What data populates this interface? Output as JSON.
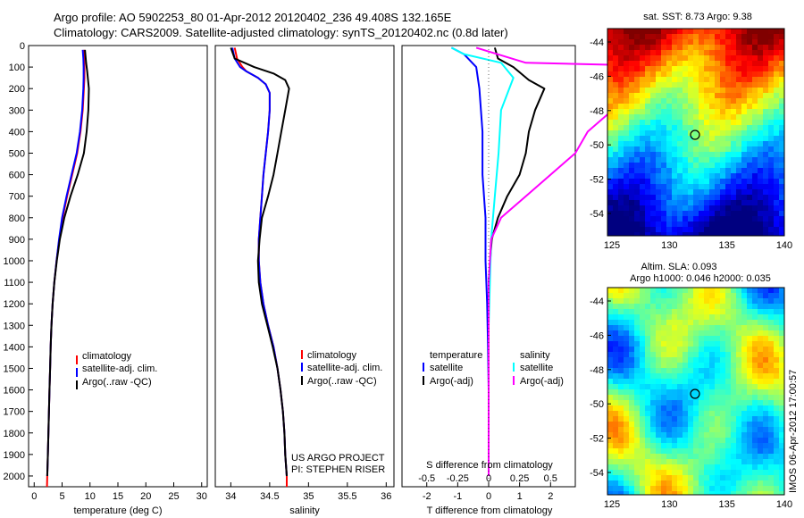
{
  "header": {
    "line1": "Argo profile: AO 5902253_80 01-Apr-2012 20120402_236 49.408S 132.165E",
    "line2": "Climatology: CARS2009. Satellite-adjusted climatology: synTS_20120402.nc (0.8d later)"
  },
  "colors": {
    "climatology": "#ff0000",
    "satellite": "#0000ff",
    "argo": "#000000",
    "sal_satellite": "#00ffff",
    "sal_argo": "#ff00ff"
  },
  "chart_data": [
    {
      "type": "line",
      "id": "temperature",
      "xlabel": "temperature (deg C)",
      "ylabel": "",
      "xlim": [
        -1,
        31
      ],
      "ylim": [
        2050,
        0
      ],
      "xticks": [
        0,
        5,
        10,
        15,
        20,
        25,
        30
      ],
      "yticks": [
        0,
        100,
        200,
        300,
        400,
        500,
        600,
        700,
        800,
        900,
        1000,
        1100,
        1200,
        1300,
        1400,
        1500,
        1600,
        1700,
        1800,
        1900,
        2000
      ],
      "legend": [
        "climatology",
        "satellite-adj. clim.",
        "Argo(..raw -QC)"
      ],
      "series": [
        {
          "name": "climatology",
          "color": "#ff0000",
          "points": [
            [
              8.9,
              20
            ],
            [
              8.95,
              60
            ],
            [
              9.0,
              100
            ],
            [
              9.0,
              150
            ],
            [
              8.9,
              200
            ],
            [
              8.7,
              300
            ],
            [
              8.3,
              400
            ],
            [
              7.7,
              500
            ],
            [
              6.8,
              600
            ],
            [
              5.9,
              700
            ],
            [
              5.1,
              800
            ],
            [
              4.5,
              900
            ],
            [
              4.0,
              1000
            ],
            [
              3.6,
              1100
            ],
            [
              3.3,
              1200
            ],
            [
              3.1,
              1300
            ],
            [
              2.95,
              1400
            ],
            [
              2.85,
              1500
            ],
            [
              2.75,
              1600
            ],
            [
              2.65,
              1700
            ],
            [
              2.55,
              1800
            ],
            [
              2.45,
              1900
            ],
            [
              2.35,
              2000
            ],
            [
              2.3,
              2050
            ]
          ]
        },
        {
          "name": "satellite-adj. clim.",
          "color": "#0000ff",
          "points": [
            [
              8.7,
              20
            ],
            [
              8.8,
              60
            ],
            [
              8.85,
              100
            ],
            [
              8.85,
              150
            ],
            [
              8.8,
              200
            ],
            [
              8.6,
              300
            ],
            [
              8.2,
              400
            ],
            [
              7.6,
              500
            ],
            [
              6.7,
              600
            ],
            [
              5.8,
              700
            ],
            [
              5.0,
              800
            ],
            [
              4.45,
              900
            ],
            [
              4.0,
              1000
            ],
            [
              3.6,
              1100
            ],
            [
              3.3,
              1200
            ],
            [
              3.1,
              1300
            ],
            [
              2.95,
              1400
            ],
            [
              2.85,
              1500
            ],
            [
              2.75,
              1600
            ],
            [
              2.65,
              1700
            ],
            [
              2.55,
              1800
            ],
            [
              2.45,
              1900
            ],
            [
              2.35,
              2000
            ]
          ]
        },
        {
          "name": "Argo(..raw -QC)",
          "color": "#000000",
          "points": [
            [
              9.1,
              20
            ],
            [
              9.3,
              80
            ],
            [
              9.5,
              120
            ],
            [
              9.8,
              200
            ],
            [
              9.7,
              300
            ],
            [
              9.4,
              400
            ],
            [
              8.9,
              500
            ],
            [
              7.8,
              600
            ],
            [
              6.5,
              700
            ],
            [
              5.4,
              800
            ],
            [
              4.6,
              900
            ],
            [
              4.05,
              1000
            ],
            [
              3.6,
              1100
            ],
            [
              3.3,
              1200
            ],
            [
              3.1,
              1300
            ],
            [
              2.95,
              1400
            ],
            [
              2.85,
              1500
            ],
            [
              2.75,
              1600
            ],
            [
              2.65,
              1700
            ],
            [
              2.55,
              1800
            ],
            [
              2.45,
              1900
            ],
            [
              2.35,
              2000
            ]
          ]
        }
      ]
    },
    {
      "type": "line",
      "id": "salinity",
      "xlabel": "salinity",
      "xlim": [
        33.8,
        36.1
      ],
      "ylim": [
        2050,
        0
      ],
      "xticks": [
        34,
        34.5,
        35,
        35.5,
        36
      ],
      "legend": [
        "climatology",
        "satellite-adj. clim.",
        "Argo(..raw -QC)"
      ],
      "annotation": [
        "US ARGO PROJECT",
        "PI: STEPHEN RISER"
      ],
      "series": [
        {
          "name": "climatology",
          "color": "#ff0000",
          "points": [
            [
              34.05,
              10
            ],
            [
              34.08,
              60
            ],
            [
              34.15,
              100
            ],
            [
              34.2,
              120
            ],
            [
              34.35,
              150
            ],
            [
              34.45,
              180
            ],
            [
              34.5,
              220
            ],
            [
              34.5,
              300
            ],
            [
              34.48,
              400
            ],
            [
              34.45,
              500
            ],
            [
              34.42,
              600
            ],
            [
              34.4,
              700
            ],
            [
              34.38,
              800
            ],
            [
              34.36,
              900
            ],
            [
              34.36,
              1000
            ],
            [
              34.38,
              1100
            ],
            [
              34.42,
              1200
            ],
            [
              34.48,
              1300
            ],
            [
              34.55,
              1400
            ],
            [
              34.6,
              1500
            ],
            [
              34.64,
              1600
            ],
            [
              34.67,
              1700
            ],
            [
              34.69,
              1800
            ],
            [
              34.7,
              1900
            ],
            [
              34.72,
              2000
            ],
            [
              34.72,
              2050
            ]
          ]
        },
        {
          "name": "satellite-adj. clim.",
          "color": "#0000ff",
          "points": [
            [
              34.02,
              10
            ],
            [
              34.05,
              60
            ],
            [
              34.12,
              100
            ],
            [
              34.2,
              120
            ],
            [
              34.35,
              150
            ],
            [
              34.45,
              180
            ],
            [
              34.5,
              220
            ],
            [
              34.5,
              300
            ],
            [
              34.48,
              400
            ],
            [
              34.45,
              500
            ],
            [
              34.42,
              600
            ],
            [
              34.4,
              700
            ],
            [
              34.38,
              800
            ],
            [
              34.36,
              900
            ],
            [
              34.36,
              1000
            ],
            [
              34.38,
              1100
            ],
            [
              34.42,
              1200
            ],
            [
              34.48,
              1300
            ],
            [
              34.55,
              1400
            ],
            [
              34.6,
              1500
            ],
            [
              34.64,
              1600
            ],
            [
              34.67,
              1700
            ],
            [
              34.69,
              1800
            ],
            [
              34.7,
              1900
            ],
            [
              34.72,
              2000
            ]
          ]
        },
        {
          "name": "Argo(..raw -QC)",
          "color": "#000000",
          "points": [
            [
              34.0,
              10
            ],
            [
              34.05,
              60
            ],
            [
              34.3,
              100
            ],
            [
              34.55,
              130
            ],
            [
              34.7,
              160
            ],
            [
              34.75,
              200
            ],
            [
              34.7,
              300
            ],
            [
              34.65,
              400
            ],
            [
              34.6,
              500
            ],
            [
              34.55,
              600
            ],
            [
              34.48,
              700
            ],
            [
              34.4,
              800
            ],
            [
              34.37,
              900
            ],
            [
              34.35,
              1000
            ],
            [
              34.36,
              1100
            ],
            [
              34.4,
              1200
            ],
            [
              34.47,
              1300
            ],
            [
              34.54,
              1400
            ],
            [
              34.6,
              1500
            ],
            [
              34.64,
              1600
            ],
            [
              34.67,
              1700
            ],
            [
              34.69,
              1800
            ],
            [
              34.7,
              1900
            ],
            [
              34.72,
              2000
            ]
          ]
        }
      ]
    },
    {
      "type": "line",
      "id": "difference",
      "xlabel": "T difference from climatology",
      "top_axis_label": "S difference from climatology",
      "xlim": [
        -2.8,
        2.8
      ],
      "ylim": [
        2050,
        0
      ],
      "xticks": [
        -2,
        -1,
        0,
        1,
        2
      ],
      "xtick_labels": [
        "-2",
        "-1",
        "0",
        "1",
        "2"
      ],
      "top_ticks": [
        -0.5,
        -0.25,
        0,
        0.25,
        0.5
      ],
      "top_tick_labels": [
        "-0.5",
        "-0.25",
        "0",
        "0.25",
        "0.5"
      ],
      "legend_left_title": "temperature",
      "legend_right_title": "salinity",
      "legend": [
        "satellite",
        "Argo(-adj)",
        "satellite",
        "Argo(-adj)"
      ],
      "series": [
        {
          "name": "satellite",
          "group": "temperature",
          "color": "#0000ff",
          "points": [
            [
              -1.2,
              10
            ],
            [
              -0.8,
              40
            ],
            [
              -0.4,
              100
            ],
            [
              -0.3,
              200
            ],
            [
              -0.2,
              400
            ],
            [
              -0.2,
              600
            ],
            [
              -0.1,
              800
            ],
            [
              -0.1,
              1000
            ],
            [
              -0.05,
              1200
            ],
            [
              -0.02,
              1400
            ],
            [
              0,
              1600
            ],
            [
              0,
              1800
            ],
            [
              0,
              2000
            ]
          ]
        },
        {
          "name": "Argo(-adj)",
          "group": "temperature",
          "color": "#000000",
          "points": [
            [
              0.2,
              10
            ],
            [
              0.3,
              60
            ],
            [
              0.8,
              100
            ],
            [
              1.3,
              160
            ],
            [
              1.8,
              200
            ],
            [
              1.5,
              300
            ],
            [
              1.3,
              400
            ],
            [
              1.2,
              500
            ],
            [
              1.0,
              600
            ],
            [
              0.6,
              700
            ],
            [
              0.3,
              800
            ],
            [
              0.1,
              900
            ],
            [
              0.05,
              1000
            ],
            [
              0.0,
              1100
            ],
            [
              0.0,
              1300
            ],
            [
              0,
              1600
            ],
            [
              0,
              2000
            ]
          ]
        },
        {
          "name": "satellite",
          "group": "salinity",
          "color": "#00ffff",
          "points": [
            [
              -0.3,
              10
            ],
            [
              -0.2,
              40
            ],
            [
              0.1,
              80
            ],
            [
              0.2,
              150
            ],
            [
              0.1,
              300
            ],
            [
              0.08,
              500
            ],
            [
              0.05,
              700
            ],
            [
              0.02,
              900
            ],
            [
              0.01,
              1100
            ],
            [
              0,
              1300
            ],
            [
              0,
              1600
            ],
            [
              0,
              2000
            ]
          ]
        },
        {
          "name": "Argo(-adj)",
          "group": "salinity",
          "color": "#ff00ff",
          "points": [
            [
              -0.1,
              10
            ],
            [
              0.3,
              80
            ],
            [
              1.8,
              100
            ],
            [
              1.3,
              160
            ],
            [
              1.0,
              220
            ],
            [
              1.0,
              300
            ],
            [
              0.8,
              400
            ],
            [
              0.7,
              500
            ],
            [
              0.5,
              600
            ],
            [
              0.3,
              700
            ],
            [
              0.1,
              800
            ],
            [
              0.02,
              900
            ],
            [
              0,
              1100
            ],
            [
              0,
              1600
            ],
            [
              0,
              2000
            ]
          ]
        }
      ]
    }
  ],
  "maps": [
    {
      "id": "sst-map",
      "title": "sat. SST: 8.73 Argo: 9.38",
      "xticks": [
        "125",
        "130",
        "135",
        "140"
      ],
      "yticks": [
        "-44",
        "-46",
        "-48",
        "-50",
        "-52",
        "-54"
      ]
    },
    {
      "id": "sla-map",
      "title_line1": "Altim. SLA: 0.093",
      "title_line2": "Argo h1000: 0.046 h2000: 0.035",
      "xticks": [
        "125",
        "130",
        "135",
        "140"
      ],
      "yticks": [
        "-44",
        "-46",
        "-48",
        "-50",
        "-52",
        "-54"
      ]
    }
  ],
  "side_label": "IMOS 06-Apr-2012 17:00:57"
}
